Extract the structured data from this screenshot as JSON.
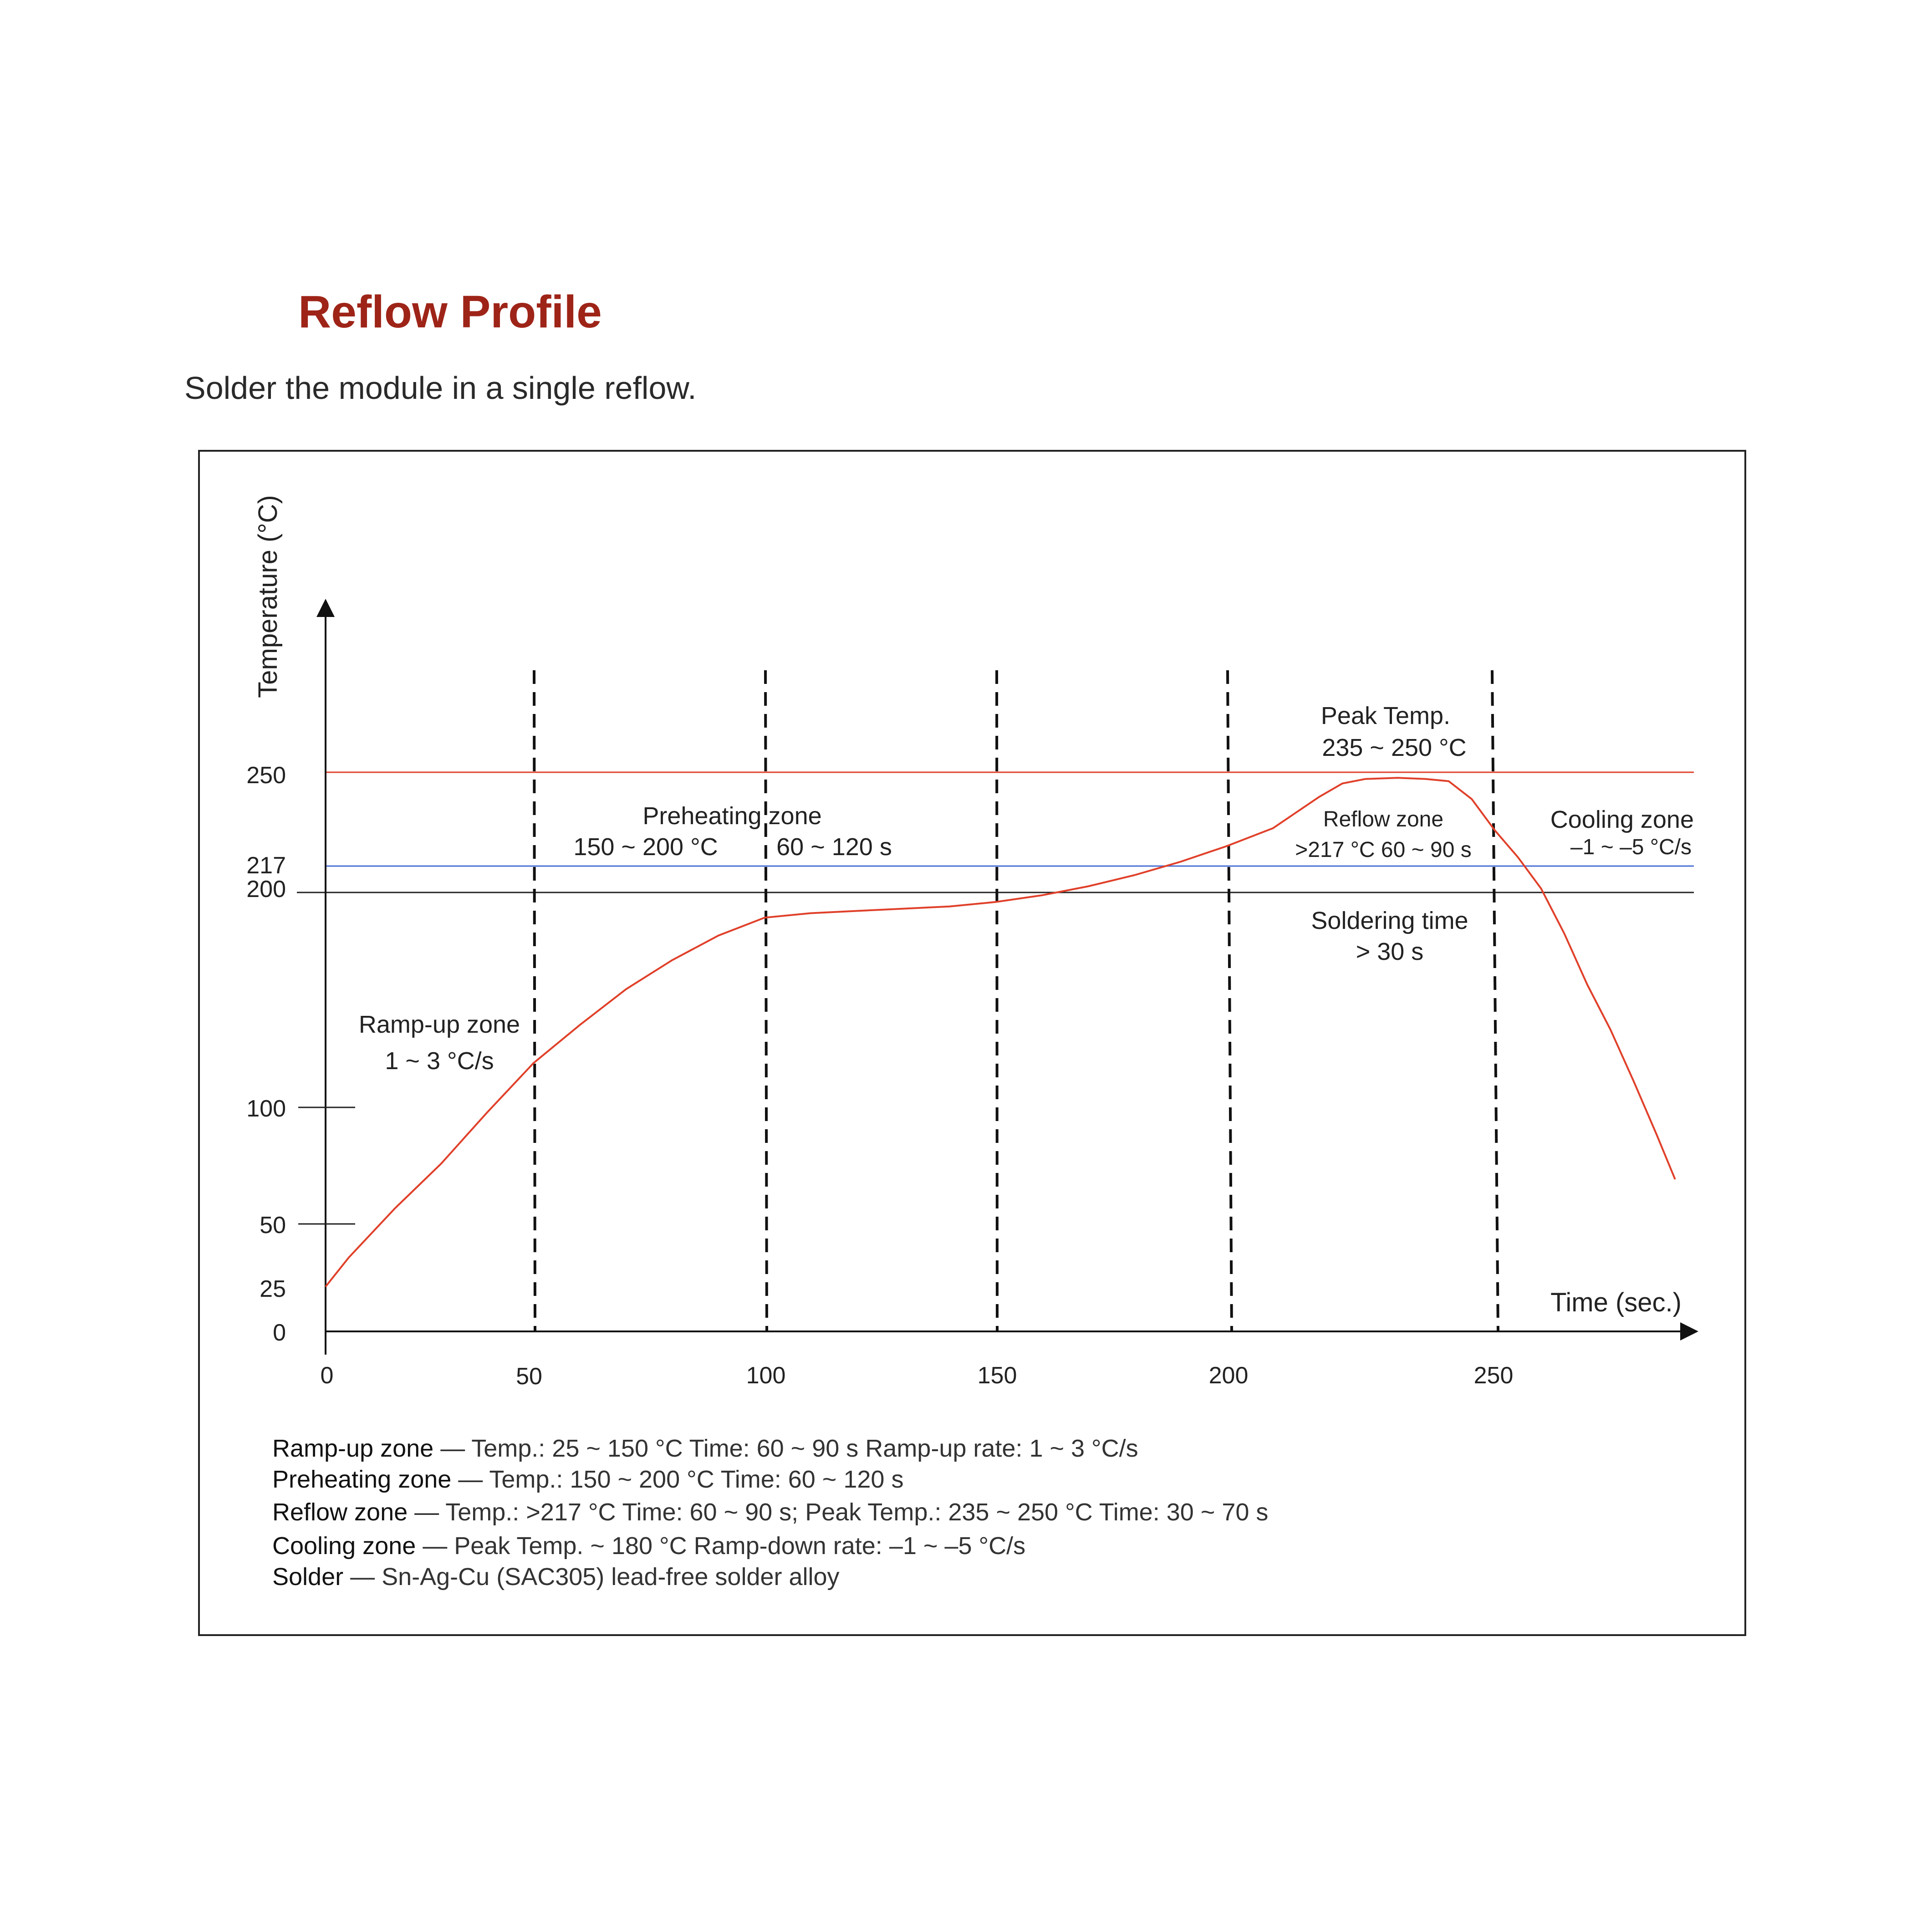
{
  "document": {
    "title": "Reflow Profile",
    "subtitle": "Solder the module in a single reflow."
  },
  "colors": {
    "title": "#9e2418",
    "profile_curve": "#e0402a",
    "peak_line": "#e0402a",
    "liquidus_line": "#4a6fd6",
    "soldering_line": "#222222",
    "zone_boundary": "#111111"
  },
  "chart_data": {
    "type": "line",
    "ylabel": "Temperature (°C)",
    "xlabel": "Time (sec.)",
    "xlim": [
      0,
      295
    ],
    "ylim": [
      0,
      290
    ],
    "x_ticks": [
      "0",
      "50",
      "100",
      "150",
      "200",
      "250"
    ],
    "y_ticks": [
      "0",
      "25",
      "50",
      "100",
      "200",
      "217",
      "250"
    ],
    "zone_boundaries": [
      45,
      95,
      145,
      195,
      252
    ],
    "reference_lines": [
      {
        "value": 250,
        "style": "red"
      },
      {
        "value": 217,
        "style": "blue"
      },
      {
        "value": 200,
        "style": "black"
      }
    ],
    "series": [
      {
        "x": [
          0,
          5,
          15,
          25,
          35,
          45,
          55,
          65,
          75,
          85,
          95,
          105,
          115,
          125,
          135,
          145,
          155,
          165,
          175,
          185,
          195,
          205,
          210,
          215,
          220,
          225,
          232,
          238,
          243,
          248,
          253,
          258,
          263,
          268,
          273,
          278,
          283,
          288,
          292
        ],
        "y": [
          20,
          33,
          55,
          75,
          98,
          120,
          137,
          153,
          166,
          177,
          185,
          187,
          188,
          189,
          190,
          192,
          195,
          199,
          204,
          210,
          217,
          225,
          232,
          239,
          245,
          247,
          247.5,
          247,
          246,
          238,
          224,
          212,
          198,
          178,
          155,
          135,
          112,
          88,
          68
        ]
      }
    ],
    "annotations": {
      "ramp_up_title": "Ramp-up zone",
      "ramp_up_rate": "1 ~ 3 °C/s",
      "preheat_title": "Preheating zone",
      "preheat_temp": "150 ~ 200 °C",
      "preheat_time": "60 ~ 120 s",
      "peak_title": "Peak Temp.",
      "peak_range": "235 ~ 250 °C",
      "reflow_title": "Reflow zone",
      "reflow_detail": ">217 °C  60 ~ 90 s",
      "cooling_title": "Cooling zone",
      "cooling_rate": "–1 ~ –5 °C/s",
      "soldering_title": "Soldering time",
      "soldering_value": "> 30 s"
    }
  },
  "legend": [
    {
      "label": "Ramp-up zone",
      "text": " — Temp.: 25 ~ 150 °C  Time: 60 ~ 90 s  Ramp-up rate: 1 ~ 3 °C/s"
    },
    {
      "label": "Preheating zone",
      "text": " — Temp.: 150 ~ 200 °C  Time: 60 ~ 120 s"
    },
    {
      "label": "Reflow zone",
      "text": " — Temp.: >217 °C  Time: 60 ~ 90 s; Peak Temp.: 235 ~ 250 °C  Time: 30 ~ 70 s"
    },
    {
      "label": "Cooling zone",
      "text": " — Peak Temp. ~ 180 °C  Ramp-down rate: –1 ~ –5 °C/s"
    },
    {
      "label": "Solder",
      "text": " — Sn-Ag-Cu (SAC305) lead-free solder alloy"
    }
  ]
}
